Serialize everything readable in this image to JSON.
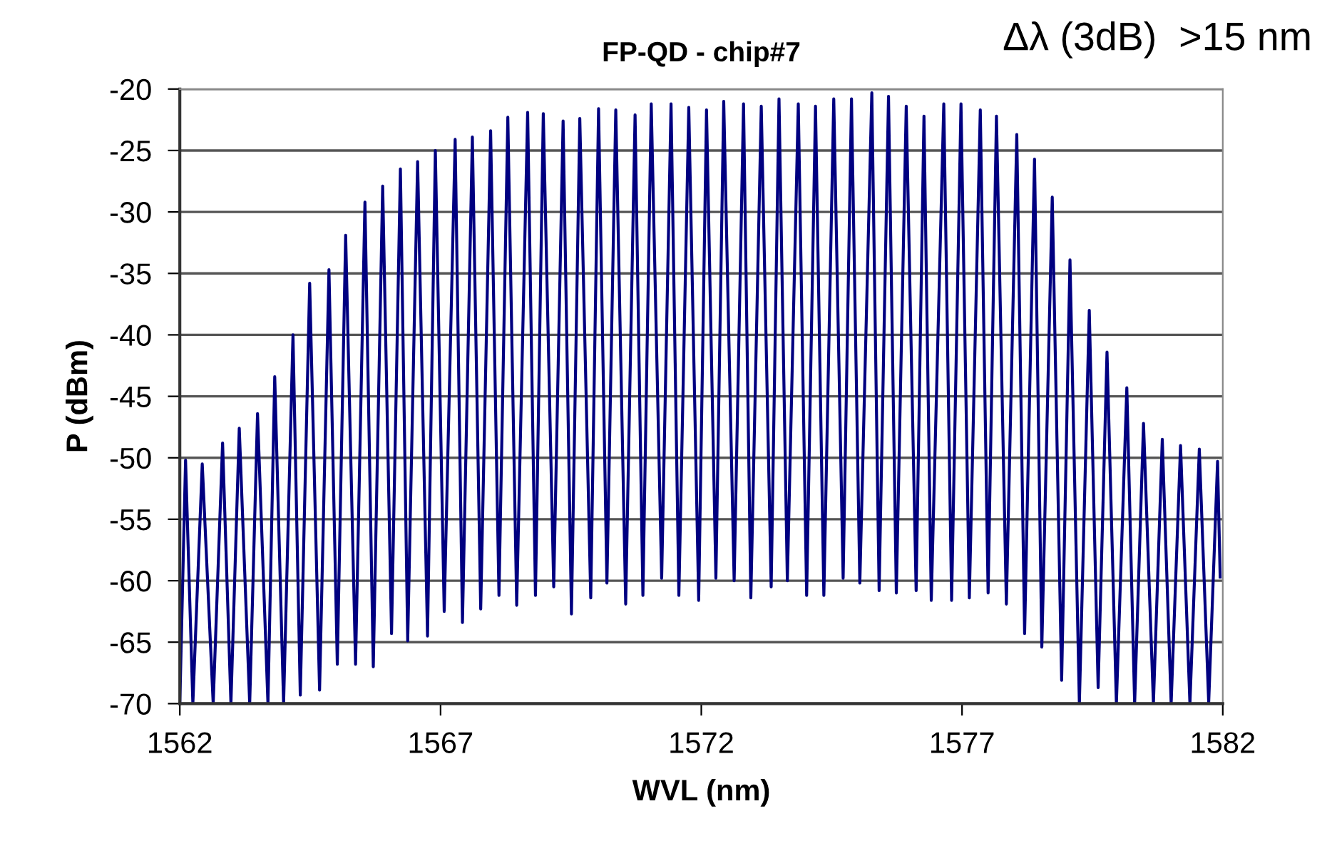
{
  "chart_data": {
    "type": "line",
    "title": "FP-QD - chip#7",
    "xlabel": "WVL (nm)",
    "ylabel": "P (dBm)",
    "annotations": [
      "Δλ (3dB)  >15 nm"
    ],
    "x": [
      1562.0,
      1562.11,
      1562.25,
      1562.43,
      1562.64,
      1562.82,
      1562.98,
      1563.14,
      1563.34,
      1563.49,
      1563.69,
      1563.82,
      1563.99,
      1564.17,
      1564.31,
      1564.49,
      1564.68,
      1564.86,
      1565.02,
      1565.18,
      1565.37,
      1565.55,
      1565.71,
      1565.89,
      1566.06,
      1566.23,
      1566.37,
      1566.56,
      1566.75,
      1566.9,
      1567.07,
      1567.28,
      1567.42,
      1567.61,
      1567.77,
      1567.96,
      1568.12,
      1568.29,
      1568.46,
      1568.67,
      1568.82,
      1568.97,
      1569.17,
      1569.35,
      1569.51,
      1569.67,
      1569.88,
      1570.03,
      1570.19,
      1570.36,
      1570.55,
      1570.73,
      1570.88,
      1571.04,
      1571.24,
      1571.42,
      1571.57,
      1571.76,
      1571.95,
      1572.1,
      1572.28,
      1572.43,
      1572.63,
      1572.81,
      1572.95,
      1573.15,
      1573.34,
      1573.49,
      1573.65,
      1573.86,
      1574.02,
      1574.19,
      1574.35,
      1574.54,
      1574.72,
      1574.88,
      1575.04,
      1575.27,
      1575.41,
      1575.59,
      1575.74,
      1575.93,
      1576.12,
      1576.27,
      1576.41,
      1576.65,
      1576.8,
      1576.98,
      1577.14,
      1577.35,
      1577.5,
      1577.66,
      1577.85,
      1578.05,
      1578.2,
      1578.39,
      1578.53,
      1578.73,
      1578.91,
      1579.07,
      1579.25,
      1579.44,
      1579.61,
      1579.78,
      1579.96,
      1580.16,
      1580.31,
      1580.48,
      1580.67,
      1580.84,
      1581.01,
      1581.19,
      1581.37,
      1581.55,
      1581.73,
      1581.9,
      1581.95
    ],
    "series": [
      {
        "color": "#000080",
        "values": [
          -70,
          -50.2,
          -70,
          -50.5,
          -70,
          -48.8,
          -70,
          -47.6,
          -70,
          -46.4,
          -70,
          -43.4,
          -70,
          -40.0,
          -69.3,
          -35.8,
          -68.9,
          -34.7,
          -66.8,
          -31.9,
          -66.8,
          -29.2,
          -67.0,
          -27.9,
          -64.3,
          -26.5,
          -64.9,
          -25.9,
          -64.5,
          -25.0,
          -62.5,
          -24.1,
          -63.4,
          -23.9,
          -62.3,
          -23.4,
          -61.2,
          -22.3,
          -62.0,
          -21.9,
          -61.2,
          -22.0,
          -60.5,
          -22.6,
          -62.7,
          -22.4,
          -61.4,
          -21.6,
          -60.2,
          -21.7,
          -61.9,
          -22.1,
          -61.2,
          -21.2,
          -59.8,
          -21.2,
          -61.2,
          -21.5,
          -61.6,
          -21.7,
          -59.8,
          -21.0,
          -60.0,
          -21.2,
          -61.4,
          -21.4,
          -60.5,
          -20.8,
          -60.0,
          -21.2,
          -61.2,
          -21.4,
          -61.2,
          -20.8,
          -59.8,
          -20.8,
          -60.2,
          -20.3,
          -60.8,
          -20.6,
          -61.0,
          -21.4,
          -60.8,
          -22.2,
          -61.6,
          -21.2,
          -61.6,
          -21.2,
          -61.4,
          -21.7,
          -61.0,
          -22.2,
          -61.9,
          -23.7,
          -64.3,
          -25.7,
          -65.4,
          -28.8,
          -68.1,
          -33.9,
          -70,
          -38.0,
          -68.7,
          -41.4,
          -70,
          -44.3,
          -70,
          -47.2,
          -70,
          -48.5,
          -70,
          -49.0,
          -70,
          -49.3,
          -69.9,
          -50.3,
          -59.7
        ]
      }
    ],
    "xlim": [
      1562,
      1582
    ],
    "xticks": [
      1562,
      1567,
      1572,
      1577,
      1582
    ],
    "ylim": [
      -70,
      -20
    ],
    "yticks": [
      -70,
      -65,
      -60,
      -55,
      -50,
      -45,
      -40,
      -35,
      -30,
      -25,
      -20
    ],
    "grid": "y",
    "legend": false,
    "marker": "none",
    "line_style": "solid"
  }
}
